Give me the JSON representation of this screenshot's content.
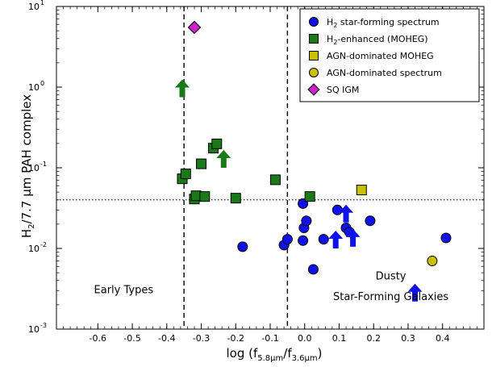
{
  "chart_data": {
    "type": "scatter",
    "xlabel": "log (f",
    "xlabel_sub1": "5.8μm",
    "xlabel_mid": "/f",
    "xlabel_sub2": "3.6μm",
    "xlabel_end": ")",
    "ylabel": "H",
    "ylabel_sub": "2",
    "ylabel_rest": "/7.7 μm PAH complex",
    "y_scale": "log",
    "xlim": [
      -0.72,
      0.52
    ],
    "ylim": [
      0.001,
      10
    ],
    "x_ticks": [
      -0.6,
      -0.5,
      -0.4,
      -0.3,
      -0.2,
      -0.1,
      0.0,
      0.1,
      0.2,
      0.3,
      0.4
    ],
    "x_tick_labels": [
      "-0.6",
      "-0.5",
      "-0.4",
      "-0.3",
      "-0.2",
      "-0.1",
      "0.0",
      "0.1",
      "0.2",
      "0.3",
      "0.4"
    ],
    "y_ticks": [
      {
        "value": 0.001,
        "base": "10",
        "exp": "-3"
      },
      {
        "value": 0.01,
        "base": "10",
        "exp": "-2"
      },
      {
        "value": 0.1,
        "base": "10",
        "exp": "-1"
      },
      {
        "value": 1,
        "base": "10",
        "exp": "0"
      },
      {
        "value": 10,
        "base": "10",
        "exp": "1"
      }
    ],
    "vertical_lines": [
      -0.35,
      -0.05
    ],
    "horizontal_line": 0.04,
    "legend_position": "top-right",
    "series": [
      {
        "name": "H₂ star-forming spectrum",
        "marker": "circle",
        "color": "#1010e8",
        "points": [
          {
            "x": -0.18,
            "y": 0.0105
          },
          {
            "x": -0.06,
            "y": 0.011
          },
          {
            "x": -0.05,
            "y": 0.013
          },
          {
            "x": -0.005,
            "y": 0.036
          },
          {
            "x": -0.002,
            "y": 0.018
          },
          {
            "x": -0.005,
            "y": 0.0125
          },
          {
            "x": 0.005,
            "y": 0.022
          },
          {
            "x": 0.025,
            "y": 0.0055
          },
          {
            "x": 0.055,
            "y": 0.013
          },
          {
            "x": 0.095,
            "y": 0.03
          },
          {
            "x": 0.12,
            "y": 0.018
          },
          {
            "x": 0.13,
            "y": 0.016
          },
          {
            "x": 0.19,
            "y": 0.022
          },
          {
            "x": 0.41,
            "y": 0.0135
          }
        ]
      },
      {
        "name": "H₂-enhanced (MOHEG)",
        "marker": "square",
        "color": "#1a7a1a",
        "points": [
          {
            "x": -0.355,
            "y": 0.073
          },
          {
            "x": -0.345,
            "y": 0.084
          },
          {
            "x": -0.32,
            "y": 0.041
          },
          {
            "x": -0.315,
            "y": 0.045
          },
          {
            "x": -0.29,
            "y": 0.044
          },
          {
            "x": -0.3,
            "y": 0.112
          },
          {
            "x": -0.265,
            "y": 0.175
          },
          {
            "x": -0.255,
            "y": 0.198
          },
          {
            "x": -0.2,
            "y": 0.042
          },
          {
            "x": -0.085,
            "y": 0.071
          },
          {
            "x": 0.015,
            "y": 0.044
          }
        ]
      },
      {
        "name": "AGN-dominated MOHEG",
        "marker": "square",
        "color": "#c8c000",
        "points": [
          {
            "x": 0.165,
            "y": 0.053
          }
        ]
      },
      {
        "name": "AGN-dominated spectrum",
        "marker": "circle",
        "color": "#c8c000",
        "points": [
          {
            "x": 0.37,
            "y": 0.007
          }
        ]
      },
      {
        "name": "SQ IGM",
        "marker": "diamond",
        "color": "#cc22cc",
        "points": [
          {
            "x": -0.32,
            "y": 5.5
          }
        ]
      }
    ],
    "lower_limits": [
      {
        "x": -0.355,
        "y": 0.75,
        "color": "#1a7a1a"
      },
      {
        "x": -0.235,
        "y": 0.1,
        "color": "#1a7a1a"
      },
      {
        "x": 0.12,
        "y": 0.021,
        "color": "#1010e8"
      },
      {
        "x": 0.09,
        "y": 0.01,
        "color": "#1010e8"
      },
      {
        "x": 0.14,
        "y": 0.0105,
        "color": "#1010e8"
      },
      {
        "x": 0.32,
        "y": 0.0022,
        "color": "#1010e8"
      }
    ],
    "annotations": [
      {
        "text": "Early Types",
        "x": -0.525,
        "y": 0.0028
      },
      {
        "text": "Dusty",
        "x": 0.25,
        "y": 0.0041
      },
      {
        "text": "Star-Forming Galaxies",
        "x": 0.25,
        "y": 0.0023
      }
    ],
    "legend": [
      {
        "label": "H",
        "sub": "2",
        "rest": " star-forming spectrum",
        "marker": "circle",
        "color": "#1010e8"
      },
      {
        "label": "H",
        "sub": "2",
        "rest": "-enhanced (MOHEG)",
        "marker": "square",
        "color": "#1a7a1a"
      },
      {
        "label": "AGN-dominated MOHEG",
        "sub": "",
        "rest": "",
        "marker": "square",
        "color": "#c8c000"
      },
      {
        "label": "AGN-dominated spectrum",
        "sub": "",
        "rest": "",
        "marker": "circle",
        "color": "#c8c000"
      },
      {
        "label": "SQ IGM",
        "sub": "",
        "rest": "",
        "marker": "diamond",
        "color": "#cc22cc"
      }
    ]
  }
}
